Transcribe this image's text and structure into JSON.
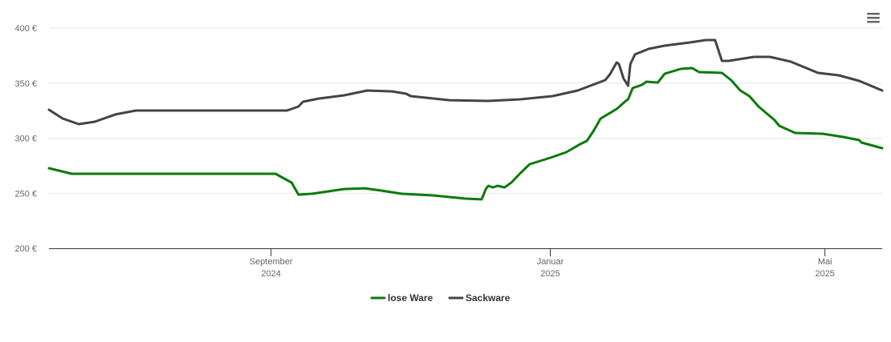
{
  "chart_data": {
    "type": "line",
    "xlim": [
      "2024-05-27",
      "2025-05-26"
    ],
    "xticks": [
      {
        "value": "2024-09-01",
        "label": [
          "September",
          "2024"
        ]
      },
      {
        "value": "2025-01-01",
        "label": [
          "Januar",
          "2025"
        ]
      },
      {
        "value": "2025-05-01",
        "label": [
          "Mai",
          "2025"
        ]
      }
    ],
    "ylim": [
      200,
      400
    ],
    "yticks": [
      {
        "value": 200,
        "label": "200 €"
      },
      {
        "value": 250,
        "label": "250 €"
      },
      {
        "value": 300,
        "label": "300 €"
      },
      {
        "value": 350,
        "label": "350 €"
      },
      {
        "value": 400,
        "label": "400 €"
      }
    ],
    "grid": true,
    "legend": "bottom",
    "series": [
      {
        "name": "lose Ware",
        "color": "#0a7a0a",
        "x": [
          "2024-05-27",
          "2024-06-06",
          "2024-09-03",
          "2024-09-10",
          "2024-09-13",
          "2024-09-19",
          "2024-10-03",
          "2024-10-12",
          "2024-10-19",
          "2024-10-28",
          "2024-11-11",
          "2024-11-25",
          "2024-12-02",
          "2024-12-04",
          "2024-12-05",
          "2024-12-07",
          "2024-12-09",
          "2024-12-12",
          "2024-12-15",
          "2024-12-19",
          "2024-12-23",
          "2025-01-01",
          "2025-01-08",
          "2025-01-14",
          "2025-01-17",
          "2025-01-20",
          "2025-01-23",
          "2025-01-30",
          "2025-02-03",
          "2025-02-04",
          "2025-02-06",
          "2025-02-10",
          "2025-02-12",
          "2025-02-17",
          "2025-02-20",
          "2025-02-27",
          "2025-03-04",
          "2025-03-07",
          "2025-03-17",
          "2025-03-21",
          "2025-03-25",
          "2025-03-29",
          "2025-04-02",
          "2025-04-09",
          "2025-04-11",
          "2025-04-18",
          "2025-04-30",
          "2025-05-09",
          "2025-05-16",
          "2025-05-17",
          "2025-05-26"
        ],
        "values": [
          272.7,
          267.6,
          267.6,
          259.6,
          248.7,
          249.5,
          253.8,
          254.5,
          252.4,
          249.5,
          248,
          245.1,
          244.4,
          254.5,
          256.7,
          255.3,
          256.7,
          255.3,
          259.6,
          268.4,
          276.4,
          282.2,
          287.3,
          294.5,
          297.5,
          306.9,
          317.8,
          326.5,
          333.8,
          335.3,
          345.5,
          348.4,
          351.3,
          350.5,
          358.5,
          362.9,
          363.6,
          360,
          359.3,
          352.7,
          343.3,
          338.2,
          328.7,
          316.4,
          311.3,
          304.7,
          304,
          301.1,
          298.2,
          296,
          290.9
        ]
      },
      {
        "name": "Sackware",
        "color": "#444444",
        "x": [
          "2024-05-27",
          "2024-06-02",
          "2024-06-09",
          "2024-06-16",
          "2024-06-25",
          "2024-07-04",
          "2024-09-08",
          "2024-09-13",
          "2024-09-15",
          "2024-09-22",
          "2024-10-03",
          "2024-10-13",
          "2024-10-24",
          "2024-10-30",
          "2024-11-01",
          "2024-11-18",
          "2024-12-05",
          "2024-12-19",
          "2025-01-02",
          "2025-01-13",
          "2025-01-25",
          "2025-01-27",
          "2025-01-30",
          "2025-01-31",
          "2025-02-02",
          "2025-02-04",
          "2025-02-05",
          "2025-02-07",
          "2025-02-13",
          "2025-02-20",
          "2025-03-03",
          "2025-03-10",
          "2025-03-14",
          "2025-03-17",
          "2025-03-20",
          "2025-03-31",
          "2025-04-07",
          "2025-04-16",
          "2025-04-28",
          "2025-05-07",
          "2025-05-16",
          "2025-05-26"
        ],
        "values": [
          325.8,
          317.8,
          312.7,
          314.9,
          321.5,
          325.1,
          325.1,
          328.7,
          333.1,
          336,
          338.9,
          343.3,
          342.5,
          340.4,
          338.2,
          334.5,
          333.8,
          335.3,
          338.2,
          343.3,
          352.7,
          357.8,
          368.7,
          367.3,
          354.2,
          347.6,
          367.3,
          376,
          381.1,
          384,
          386.9,
          389.1,
          389.1,
          370.2,
          370.2,
          373.8,
          373.8,
          369.5,
          359.3,
          357.1,
          352,
          343.3
        ]
      }
    ]
  }
}
